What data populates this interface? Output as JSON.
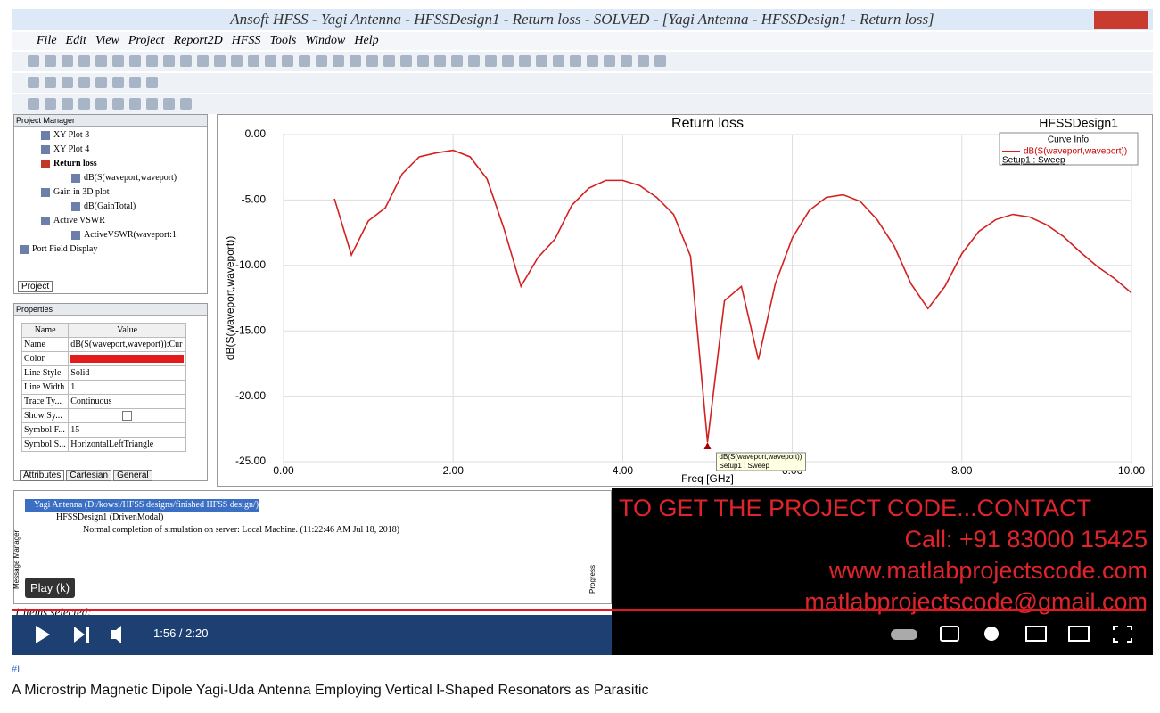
{
  "window": {
    "title": "Ansoft HFSS  - Yagi Antenna - HFSSDesign1 - Return loss - SOLVED - [Yagi Antenna - HFSSDesign1 - Return loss]",
    "menu": [
      "File",
      "Edit",
      "View",
      "Project",
      "Report2D",
      "HFSS",
      "Tools",
      "Window",
      "Help"
    ]
  },
  "project_manager": {
    "title": "Project Manager",
    "tree": [
      "XY Plot 3",
      "XY Plot 4",
      "Return loss",
      "dB(S(waveport,waveport)",
      "Gain in 3D plot",
      "dB(GainTotal)",
      "Active VSWR",
      "ActiveVSWR(waveport:1",
      "Port Field Display"
    ],
    "tab": "Project"
  },
  "properties": {
    "title": "Properties",
    "headers": [
      "Name",
      "Value"
    ],
    "rows": [
      {
        "name": "Name",
        "value": "dB(S(waveport,waveport)):Cur"
      },
      {
        "name": "Color"
      },
      {
        "name": "Line Style",
        "value": "Solid"
      },
      {
        "name": "Line Width",
        "value": "1"
      },
      {
        "name": "Trace Ty...",
        "value": "Continuous"
      },
      {
        "name": "Show Sy..."
      },
      {
        "name": "Symbol F...",
        "value": "15"
      },
      {
        "name": "Symbol S...",
        "value": "HorizontalLeftTriangle"
      }
    ],
    "tabs": [
      "Attributes",
      "Cartesian",
      "General"
    ]
  },
  "chart_data": {
    "type": "line",
    "title": "Return loss",
    "subtitle": "HFSSDesign1",
    "x_label": "Freq [GHz]",
    "y_label": "dB(S(waveport,waveport))",
    "legend_title": "Curve Info",
    "legend_note": "Setup1 : Sweep",
    "x": [
      0.6,
      0.8,
      1.0,
      1.2,
      1.4,
      1.6,
      1.8,
      2.0,
      2.2,
      2.4,
      2.6,
      2.8,
      3.0,
      3.2,
      3.4,
      3.6,
      3.8,
      4.0,
      4.2,
      4.4,
      4.6,
      4.8,
      5.0,
      5.2,
      5.4,
      5.6,
      5.8,
      6.0,
      6.2,
      6.4,
      6.6,
      6.8,
      7.0,
      7.2,
      7.4,
      7.6,
      7.8,
      8.0,
      8.2,
      8.4,
      8.6,
      8.8,
      9.0,
      9.2,
      9.4,
      9.6,
      9.8,
      10.0
    ],
    "series": [
      {
        "name": "dB(S(waveport,waveport))",
        "color": "#d42020",
        "values": [
          -4.9,
          -9.2,
          -6.6,
          -5.6,
          -3.0,
          -1.7,
          -1.4,
          -1.2,
          -1.7,
          -3.4,
          -7.2,
          -11.6,
          -9.4,
          -8.0,
          -5.4,
          -4.1,
          -3.5,
          -3.5,
          -3.9,
          -4.8,
          -6.1,
          -9.3,
          -23.5,
          -12.7,
          -11.6,
          -17.2,
          -11.4,
          -7.9,
          -5.8,
          -4.8,
          -4.6,
          -5.1,
          -6.5,
          -8.5,
          -11.4,
          -13.3,
          -11.6,
          -9.1,
          -7.4,
          -6.5,
          -6.1,
          -6.3,
          -6.9,
          -7.8,
          -9.0,
          -10.1,
          -11.0,
          -12.1
        ]
      }
    ],
    "marker_tooltip": [
      "dB(S(waveport,waveport))",
      "Setup1 : Sweep"
    ],
    "xlim": [
      0,
      10
    ],
    "ylim": [
      -25,
      0
    ],
    "xticks": [
      {
        "value": 0,
        "label": "0.00"
      },
      {
        "value": 2,
        "label": "2.00"
      },
      {
        "value": 4,
        "label": "4.00"
      },
      {
        "value": 6,
        "label": "6.00"
      },
      {
        "value": 8,
        "label": "8.00"
      },
      {
        "value": 10,
        "label": "10.00"
      }
    ],
    "yticks": [
      {
        "value": 0,
        "label": "0.00"
      },
      {
        "value": -5,
        "label": "-5.00"
      },
      {
        "value": -10,
        "label": "-10.00"
      },
      {
        "value": -15,
        "label": "-15.00"
      },
      {
        "value": -20,
        "label": "-20.00"
      },
      {
        "value": -25,
        "label": "-25.00"
      }
    ],
    "grid": true
  },
  "messages": {
    "lines": [
      "Yagi Antenna (D:/kowsi/HFSS designs/finished HFSS design/)",
      "HFSSDesign1 (DrivenModal)",
      "Normal completion of simulation on server: Local Machine. (11:22:46 AM  Jul 18, 2018)"
    ],
    "side_labels": [
      "Message Manager",
      "Progress"
    ],
    "status": "1 items selected:"
  },
  "video": {
    "tooltip": "Play (k)",
    "time": "1:56 / 2:20",
    "overlay": [
      "TO GET THE PROJECT CODE...CONTACT",
      "Call: +91 83000 15425",
      "www.matlabprojectscode.com",
      "matlabprojectscode@gmail.com"
    ],
    "hashtag": "#I",
    "title": "A Microstrip Magnetic Dipole Yagi-Uda Antenna Employing Vertical I-Shaped Resonators as Parasitic"
  }
}
